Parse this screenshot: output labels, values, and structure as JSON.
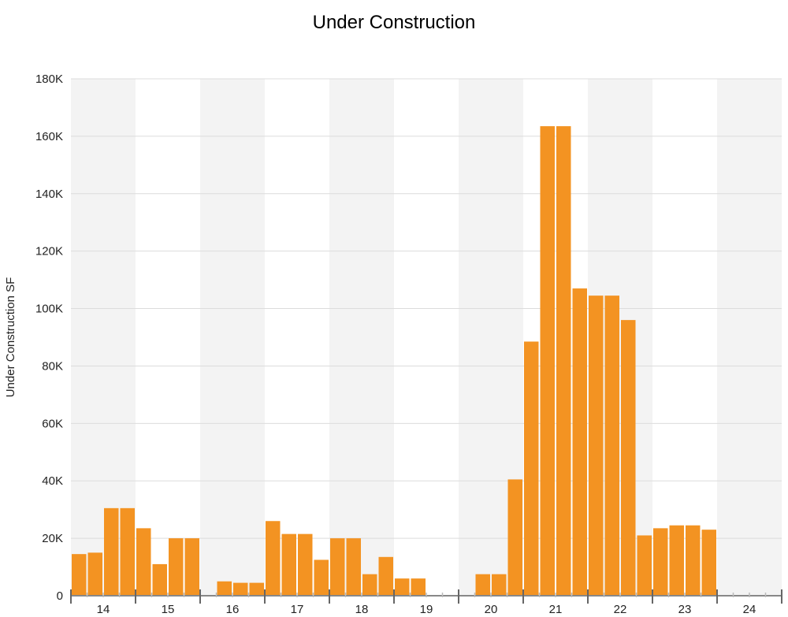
{
  "chart_data": {
    "type": "bar",
    "title": "Under Construction",
    "ylabel": "Under Construction SF",
    "xlabel": "",
    "ylim": [
      0,
      180000
    ],
    "y_ticks": [
      "0",
      "20K",
      "40K",
      "60K",
      "80K",
      "100K",
      "120K",
      "140K",
      "160K",
      "180K"
    ],
    "x_ticks": [
      "14",
      "15",
      "16",
      "17",
      "18",
      "19",
      "20",
      "21",
      "22",
      "23",
      "24"
    ],
    "grid": true,
    "legend": "none",
    "bar_color": "#F39322",
    "band_color": "#F3F3F3",
    "quarters_per_year": 4,
    "values": [
      14500,
      15000,
      30500,
      30500,
      23500,
      11000,
      20000,
      20000,
      0,
      5000,
      4500,
      4500,
      26000,
      21500,
      21500,
      12500,
      20000,
      20000,
      7500,
      13500,
      6000,
      6000,
      0,
      0,
      0,
      7500,
      7500,
      40500,
      88500,
      163500,
      163500,
      107000,
      104500,
      104500,
      96000,
      21000,
      23500,
      24500,
      24500,
      23000,
      0,
      0,
      0,
      0
    ]
  }
}
